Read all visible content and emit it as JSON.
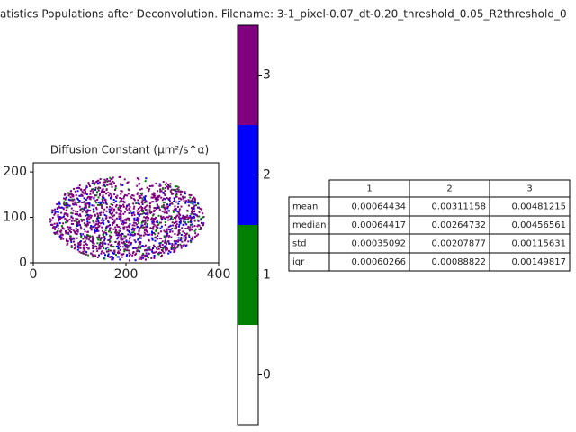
{
  "figure_title": "atistics Populations after Deconvolution. Filename: 3-1_pixel-0.07_dt-0.20_threshold_0.05_R2threshold_0",
  "plot": {
    "title": "Diffusion Constant (μm²/s^α)",
    "xlim": [
      0,
      400
    ],
    "ylim": [
      0,
      220
    ],
    "xticks": [
      0,
      200,
      400
    ],
    "yticks": [
      0,
      100,
      200
    ]
  },
  "colorbar": {
    "lim": [
      -0.5,
      3.5
    ],
    "ticks": [
      0,
      1,
      2,
      3
    ],
    "colors": [
      "#ffffff",
      "#008000",
      "#0000ff",
      "#800080"
    ]
  },
  "table": {
    "columns": [
      "1",
      "2",
      "3"
    ],
    "rows": [
      [
        "mean",
        "0.00064434",
        "0.00311158",
        "0.00481215"
      ],
      [
        "median",
        "0.00064417",
        "0.00264732",
        "0.00456561"
      ],
      [
        "std",
        "0.00035092",
        "0.00207877",
        "0.00115631"
      ],
      [
        "iqr",
        "0.00060266",
        "0.00088822",
        "0.00149817"
      ]
    ]
  }
}
